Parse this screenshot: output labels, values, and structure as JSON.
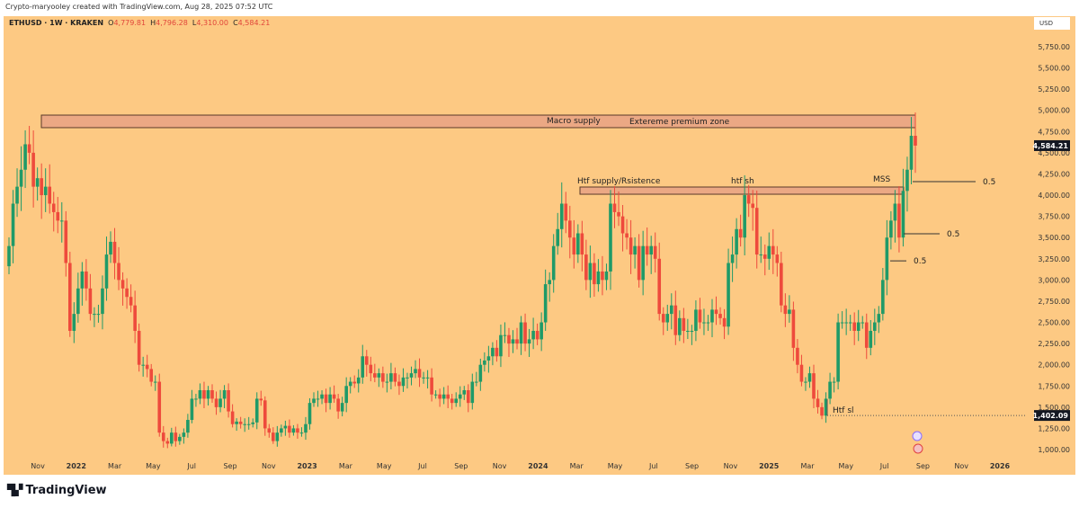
{
  "credit": "Crypto-maryooley created with TradingView.com, Aug 28, 2025 07:52 UTC",
  "legend": {
    "symbol": "ETHUSD · 1W · KRAKEN",
    "o_label": "O",
    "o": "4,779.81",
    "h_label": "H",
    "h": "4,796.28",
    "l_label": "L",
    "l": "4,310.00",
    "c_label": "C",
    "c": "4,584.21"
  },
  "currency": "USD",
  "logo": "TradingView",
  "colors": {
    "background": "#fdc983",
    "up": "#1f9a68",
    "down": "#ee4a3c",
    "zone": "#eba884"
  },
  "chart_data": {
    "type": "candlestick",
    "title": "ETHUSD · 1W · KRAKEN",
    "ylim": [
      900,
      5900
    ],
    "y_ticks": [
      1000,
      1250,
      1500,
      1750,
      2000,
      2250,
      2500,
      2750,
      3000,
      3250,
      3500,
      3750,
      4000,
      4250,
      4500,
      4750,
      5000,
      5250,
      5500,
      5750
    ],
    "y_tick_labels": [
      "1,000.00",
      "1,250.00",
      "1,500.00",
      "1,750.00",
      "2,000.00",
      "2,250.00",
      "2,500.00",
      "2,750.00",
      "3,000.00",
      "3,250.00",
      "3,500.00",
      "3,750.00",
      "4,000.00",
      "4,250.00",
      "4,500.00",
      "4,750.00",
      "5,000.00",
      "5,250.00",
      "5,500.00",
      "5,750.00"
    ],
    "x_ticks": [
      "Nov",
      "2022",
      "Mar",
      "May",
      "Jul",
      "Sep",
      "Nov",
      "2023",
      "Mar",
      "May",
      "Jul",
      "Sep",
      "Nov",
      "2024",
      "Mar",
      "May",
      "Jul",
      "Sep",
      "Nov",
      "2025",
      "Mar",
      "May",
      "Jul",
      "Sep",
      "Nov",
      "2026"
    ],
    "price_labels": [
      {
        "label": "4,584.21",
        "value": 4584.21
      },
      {
        "label": "1,402.09",
        "value": 1402.09
      }
    ],
    "weekly_closes": [
      3400,
      3900,
      4100,
      4300,
      4600,
      4500,
      4100,
      4200,
      4000,
      4100,
      3900,
      3800,
      3700,
      3700,
      3200,
      2400,
      2600,
      2900,
      3100,
      2900,
      2600,
      2600,
      2600,
      2900,
      3300,
      3450,
      3200,
      3000,
      2900,
      2800,
      2700,
      2400,
      2000,
      2000,
      1950,
      1800,
      1800,
      1200,
      1100,
      1070,
      1200,
      1100,
      1150,
      1200,
      1350,
      1600,
      1600,
      1700,
      1600,
      1700,
      1600,
      1500,
      1600,
      1700,
      1450,
      1300,
      1330,
      1300,
      1300,
      1300,
      1320,
      1600,
      1580,
      1250,
      1200,
      1100,
      1200,
      1250,
      1280,
      1200,
      1250,
      1200,
      1200,
      1300,
      1550,
      1600,
      1600,
      1650,
      1550,
      1650,
      1600,
      1450,
      1550,
      1750,
      1800,
      1780,
      1850,
      2100,
      2000,
      1900,
      1850,
      1900,
      1800,
      1800,
      1900,
      1800,
      1750,
      1850,
      1850,
      1900,
      1950,
      1850,
      1850,
      1850,
      1650,
      1650,
      1600,
      1650,
      1600,
      1550,
      1600,
      1650,
      1700,
      1550,
      1800,
      1800,
      2000,
      2050,
      2100,
      2200,
      2100,
      2350,
      2350,
      2250,
      2300,
      2250,
      2500,
      2250,
      2300,
      2400,
      2300,
      2500,
      2950,
      3000,
      3400,
      3600,
      3900,
      3700,
      3500,
      3300,
      3550,
      3300,
      3000,
      3200,
      2950,
      3100,
      3000,
      3100,
      3900,
      3800,
      3750,
      3550,
      3500,
      3300,
      3400,
      3000,
      3400,
      3300,
      3400,
      3250,
      2600,
      2500,
      2600,
      2700,
      2350,
      2550,
      2400,
      2400,
      2400,
      2650,
      2500,
      2500,
      2500,
      2650,
      2600,
      2550,
      2450,
      3200,
      3300,
      3600,
      3500,
      4000,
      3900,
      3850,
      3300,
      3300,
      3250,
      3400,
      3300,
      3200,
      2700,
      2600,
      2650,
      2200,
      2000,
      1800,
      1800,
      1900,
      1600,
      1500,
      1400,
      1600,
      1800,
      1800,
      2500,
      2500,
      2500,
      2500,
      2400,
      2500,
      2500,
      2200,
      2400,
      2500,
      2600,
      3000,
      3500,
      3700,
      3900,
      3500,
      4050,
      4300,
      4700,
      4584.21
    ],
    "annotations": [
      {
        "type": "zone",
        "label": "Macro supply",
        "label2": "Extereme premium zone",
        "low": 4796,
        "high": 4944
      },
      {
        "type": "zone",
        "label": "Htf supply/Rsistence",
        "label2": "htf sh",
        "label3": "MSS",
        "low": 4011,
        "high": 4096
      },
      {
        "type": "line",
        "label": "Htf sl",
        "value": 1402.09
      },
      {
        "type": "line",
        "label": "0.5",
        "value": 4160
      },
      {
        "type": "line",
        "label": "0.5",
        "value": 3545
      },
      {
        "type": "line",
        "label": "0.5",
        "value": 3225
      }
    ]
  }
}
